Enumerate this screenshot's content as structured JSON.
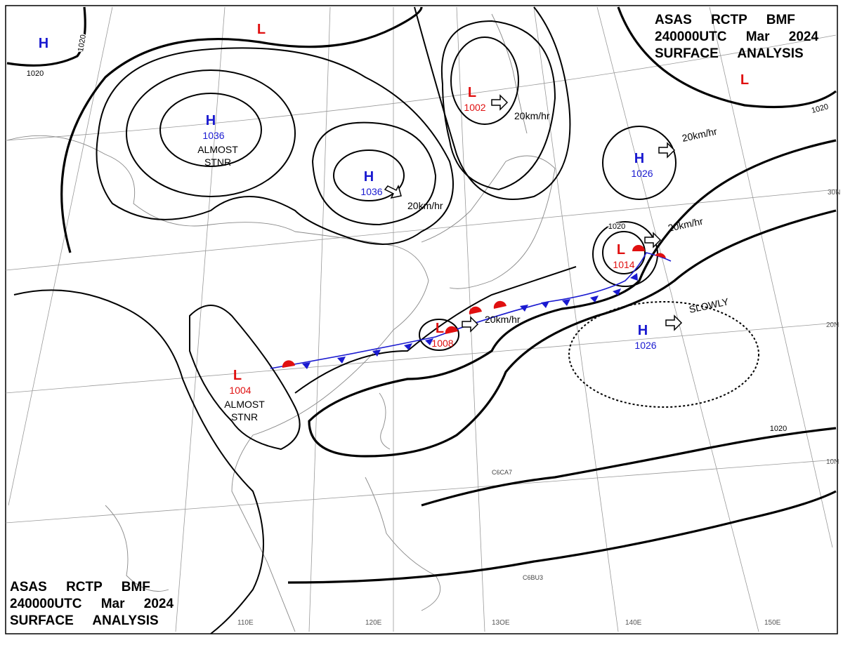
{
  "header_top": [
    "ASAS RCTP BMF",
    "240000UTC Mar 2024",
    "SURFACE ANALYSIS"
  ],
  "header_bottom": [
    "ASAS RCTP BMF",
    "240000UTC Mar 2024",
    "SURFACE ANALYSIS"
  ],
  "centers": [
    {
      "type": "H"
    },
    {
      "type": "H",
      "pressure": 1036,
      "note": "ALMOST STNR"
    },
    {
      "type": "H",
      "pressure": 1036
    },
    {
      "type": "H",
      "pressure": 1026
    },
    {
      "type": "H",
      "pressure": 1026
    },
    {
      "type": "L"
    },
    {
      "type": "L"
    },
    {
      "type": "L",
      "pressure": 1002
    },
    {
      "type": "L",
      "pressure": 1014
    },
    {
      "type": "L",
      "pressure": 1008
    },
    {
      "type": "L",
      "pressure": 1004,
      "note": "ALMOST STNR"
    }
  ],
  "isobar_labels": [
    1020,
    1020,
    1020,
    1020,
    1020
  ],
  "motion_labels": [
    "20km/hr",
    "20km/hr",
    "20km/hr",
    "20km/hr",
    "20km/hr",
    "SLOWLY"
  ],
  "latitude_labels": [
    "30N",
    "20N",
    "10N"
  ],
  "longitude_labels": [
    "110E",
    "120E",
    "13OE",
    "140E",
    "150E"
  ],
  "ship_labels": [
    "C6CA7",
    "C6BU3"
  ]
}
